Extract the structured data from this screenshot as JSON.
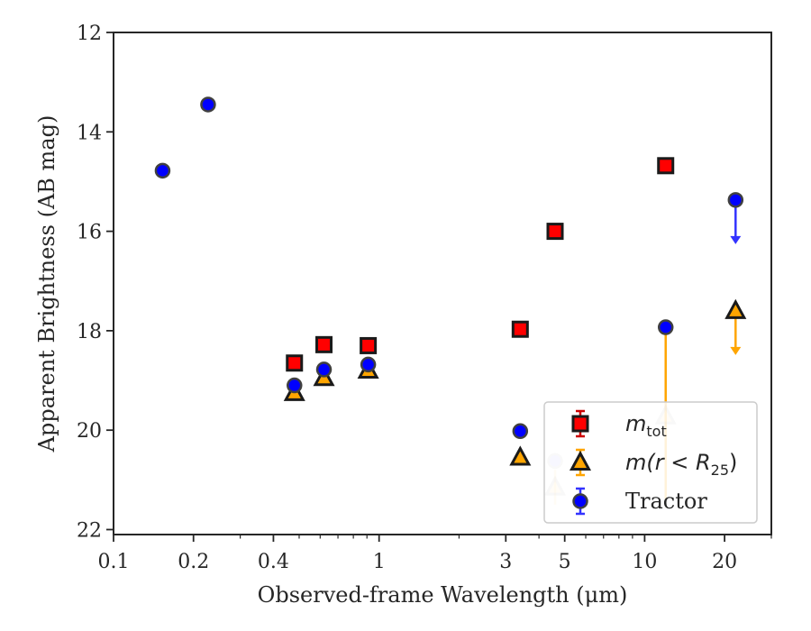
{
  "chart_data": {
    "type": "scatter",
    "xlabel": "Observed-frame Wavelength (μm)",
    "ylabel": "Apparent Brightness (AB mag)",
    "xscale": "log",
    "xlim": [
      0.1,
      30
    ],
    "ylim": [
      22.1,
      12
    ],
    "y_inverted": true,
    "x_ticks": [
      {
        "value": 0.1,
        "label": "0.1"
      },
      {
        "value": 0.2,
        "label": "0.2"
      },
      {
        "value": 0.4,
        "label": "0.4"
      },
      {
        "value": 1,
        "label": "1"
      },
      {
        "value": 3,
        "label": "3"
      },
      {
        "value": 5,
        "label": "5"
      },
      {
        "value": 10,
        "label": "10"
      },
      {
        "value": 20,
        "label": "20"
      }
    ],
    "x_minor_ticks": [
      0.3,
      0.5,
      0.6,
      0.7,
      0.8,
      0.9,
      2,
      4,
      6,
      7,
      8,
      9,
      30
    ],
    "y_ticks": [
      {
        "value": 12,
        "label": "12"
      },
      {
        "value": 14,
        "label": "14"
      },
      {
        "value": 16,
        "label": "16"
      },
      {
        "value": 18,
        "label": "18"
      },
      {
        "value": 20,
        "label": "20"
      },
      {
        "value": 22,
        "label": "22"
      }
    ],
    "grid": false,
    "legend_position": "bottom-right",
    "series": [
      {
        "id": "mtot",
        "marker": "square",
        "color": "#ff0000",
        "edge": "#1a1a1a",
        "legend_label": "m",
        "legend_sub": "tot",
        "points": [
          {
            "x": 0.48,
            "y": 18.65
          },
          {
            "x": 0.62,
            "y": 18.28
          },
          {
            "x": 0.91,
            "y": 18.3
          },
          {
            "x": 3.4,
            "y": 17.97
          },
          {
            "x": 4.6,
            "y": 16.0
          },
          {
            "x": 12.0,
            "y": 14.68
          }
        ]
      },
      {
        "id": "mr25",
        "marker": "triangle",
        "color": "#ffa500",
        "edge": "#1a1a1a",
        "legend_label": "m(r < R",
        "legend_sub": "25",
        "legend_suffix": ")",
        "points": [
          {
            "x": 0.48,
            "y": 19.25
          },
          {
            "x": 0.62,
            "y": 18.95
          },
          {
            "x": 0.91,
            "y": 18.8
          },
          {
            "x": 3.4,
            "y": 20.55
          },
          {
            "x": 4.6,
            "y": 21.15,
            "faded": true,
            "err_lo": 0.35,
            "err_hi": 0.35
          },
          {
            "x": 12.0,
            "y": 19.72,
            "faded": true,
            "err_lo": 1.7,
            "err_hi": 1.7
          },
          {
            "x": 22.0,
            "y": 17.6,
            "upper_limit": true
          }
        ]
      },
      {
        "id": "tractor",
        "marker": "circle",
        "color": "#0000ff",
        "edge": "#404040",
        "legend_label": "Tractor",
        "points": [
          {
            "x": 0.153,
            "y": 14.78
          },
          {
            "x": 0.227,
            "y": 13.45
          },
          {
            "x": 0.48,
            "y": 19.1
          },
          {
            "x": 0.62,
            "y": 18.78
          },
          {
            "x": 0.91,
            "y": 18.68
          },
          {
            "x": 3.4,
            "y": 20.02
          },
          {
            "x": 4.6,
            "y": 20.62,
            "faded": true
          },
          {
            "x": 12.0,
            "y": 17.93
          },
          {
            "x": 22.0,
            "y": 15.37,
            "upper_limit": true
          }
        ]
      }
    ]
  }
}
